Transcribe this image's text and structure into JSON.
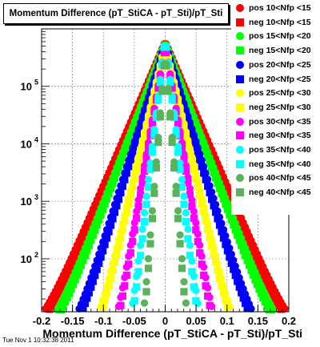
{
  "chart_data": {
    "type": "scatter",
    "title": "Momentum Difference (pT_StiCA - pT_Sti)/pT_Sti",
    "xlabel": "Momentum Difference (pT_StiCA - pT_Sti)/pT_Sti",
    "ylabel": "",
    "xlim": [
      -0.2,
      0.2
    ],
    "ylim": [
      12,
      1000000
    ],
    "y_scale": "log",
    "grid": true,
    "legend_position": "top-right",
    "x_tick_labels": [
      "-0.2",
      "-0.15",
      "-0.1",
      "-0.05",
      "0",
      "0.05",
      "0.1",
      "0.15",
      "0.2"
    ],
    "x_ticks": [
      -0.2,
      -0.15,
      -0.1,
      -0.05,
      0,
      0.05,
      0.1,
      0.15,
      0.2
    ],
    "y_tick_labels": [
      {
        "value": 100,
        "base": "10",
        "exp": "2"
      },
      {
        "value": 1000,
        "base": "10",
        "exp": "3"
      },
      {
        "value": 10000,
        "base": "10",
        "exp": "4"
      },
      {
        "value": 100000,
        "base": "10",
        "exp": "5"
      }
    ],
    "series": [
      {
        "name": "pos 10<Nfp <15",
        "color": "#ff0000",
        "marker": "circle",
        "peak": 600000,
        "width": 0.04
      },
      {
        "name": "neg 10<Nfp <15",
        "color": "#ff0000",
        "marker": "square",
        "peak": 550000,
        "width": 0.039
      },
      {
        "name": "pos 15<Nfp <20",
        "color": "#00ff00",
        "marker": "circle",
        "peak": 580000,
        "width": 0.036
      },
      {
        "name": "neg 15<Nfp <20",
        "color": "#00ff00",
        "marker": "square",
        "peak": 540000,
        "width": 0.035
      },
      {
        "name": "pos 20<Nfp <25",
        "color": "#0000ff",
        "marker": "circle",
        "peak": 560000,
        "width": 0.029
      },
      {
        "name": "neg 20<Nfp <25",
        "color": "#0000ff",
        "marker": "square",
        "peak": 520000,
        "width": 0.028
      },
      {
        "name": "pos 25<Nfp <30",
        "color": "#ffff00",
        "marker": "circle",
        "peak": 540000,
        "width": 0.022
      },
      {
        "name": "neg 25<Nfp <30",
        "color": "#ffff00",
        "marker": "square",
        "peak": 500000,
        "width": 0.0215
      },
      {
        "name": "pos 30<Nfp <35",
        "color": "#ff00ff",
        "marker": "circle",
        "peak": 520000,
        "width": 0.016
      },
      {
        "name": "neg 30<Nfp <35",
        "color": "#ff00ff",
        "marker": "square",
        "peak": 490000,
        "width": 0.0155
      },
      {
        "name": "pos 35<Nfp <40",
        "color": "#00ffff",
        "marker": "circle",
        "peak": 700000,
        "width": 0.011
      },
      {
        "name": "neg 35<Nfp <40",
        "color": "#00ffff",
        "marker": "square",
        "peak": 680000,
        "width": 0.0105
      },
      {
        "name": "pos 40<Nfp <45",
        "color": "#5ab35a",
        "marker": "circle",
        "peak": 400000,
        "width": 0.0075
      },
      {
        "name": "neg 40<Nfp <45",
        "color": "#5ab35a",
        "marker": "square",
        "peak": 380000,
        "width": 0.0072
      }
    ]
  },
  "footer": {
    "timestamp": "Tue Nov  1 10:32:38 2011"
  }
}
